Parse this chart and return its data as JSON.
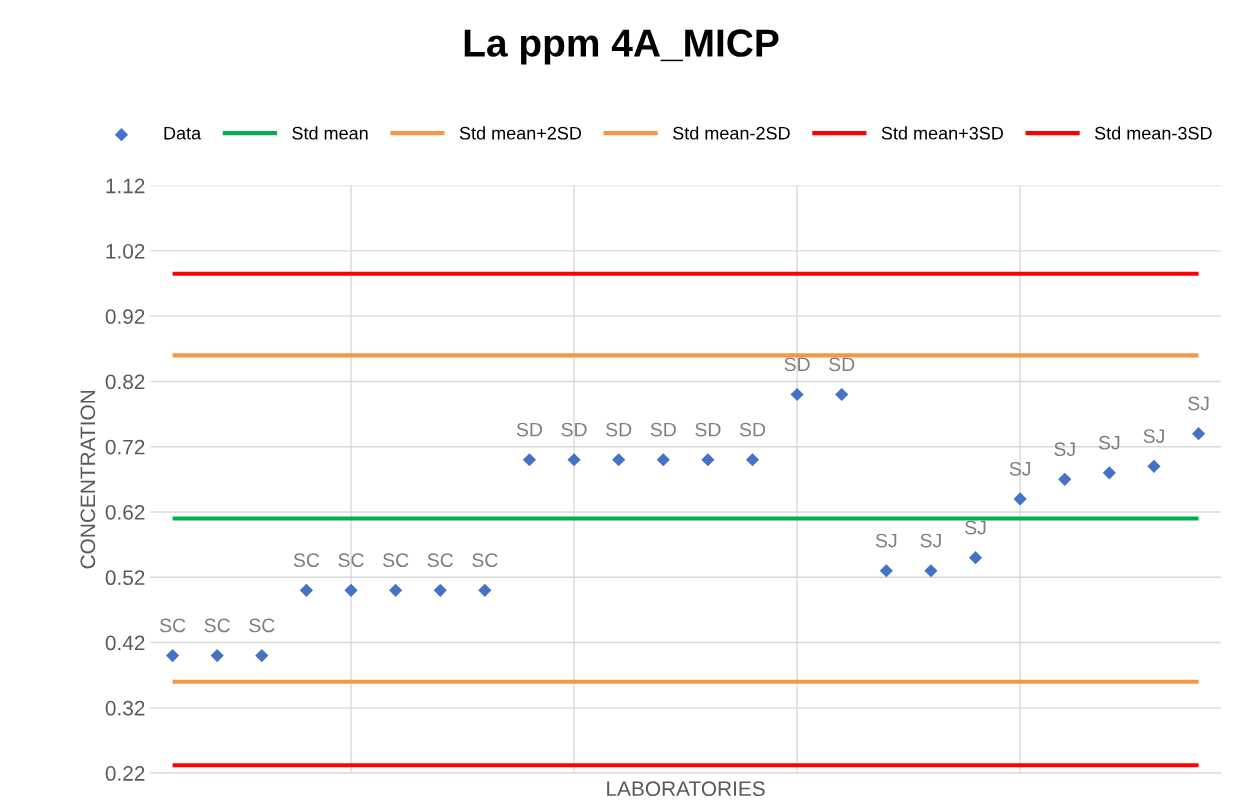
{
  "chart_data": {
    "type": "scatter",
    "title": "La ppm 4A_MICP",
    "xlabel": "LABORATORIES",
    "ylabel": "CONCENTRATION",
    "categories": [
      null,
      null,
      null,
      null,
      null,
      null,
      null,
      null,
      null,
      null,
      null,
      null,
      null,
      null,
      null,
      null,
      null,
      null,
      null,
      null,
      null,
      null,
      null,
      null
    ],
    "ylim": [
      0.22,
      1.12
    ],
    "yticks": [
      0.22,
      0.32,
      0.42,
      0.52,
      0.62,
      0.72,
      0.82,
      0.92,
      1.02,
      1.12
    ],
    "grid": true,
    "legend": "top",
    "marker": "diamond",
    "series": [
      {
        "name": "Data",
        "color": "#4472c4",
        "values": [
          0.4,
          0.4,
          0.4,
          0.5,
          0.5,
          0.5,
          0.5,
          0.5,
          0.7,
          0.7,
          0.7,
          0.7,
          0.7,
          0.7,
          0.8,
          0.8,
          0.53,
          0.53,
          0.55,
          0.64,
          0.67,
          0.68,
          0.69,
          0.74
        ],
        "value_labels": [
          "SC",
          "SC",
          "SC",
          "SC",
          "SC",
          "SC",
          "SC",
          "SC",
          "SD",
          "SD",
          "SD",
          "SD",
          "SD",
          "SD",
          "SD",
          "SD",
          "SJ",
          "SJ",
          "SJ",
          "SJ",
          "SJ",
          "SJ",
          "SJ",
          "SJ"
        ]
      }
    ],
    "ref_lines": [
      {
        "axis": "y",
        "value": 0.61,
        "label": "Std mean",
        "color": "#00b050"
      },
      {
        "axis": "y",
        "value": 0.86,
        "label": "Std mean+2SD",
        "color": "#f79646"
      },
      {
        "axis": "y",
        "value": 0.36,
        "label": "Std mean-2SD",
        "color": "#f79646"
      },
      {
        "axis": "y",
        "value": 0.985,
        "label": "Std mean+3SD",
        "color": "#ff0000"
      },
      {
        "axis": "y",
        "value": 0.232,
        "label": "Std mean-3SD",
        "color": "#ff0000"
      }
    ]
  }
}
